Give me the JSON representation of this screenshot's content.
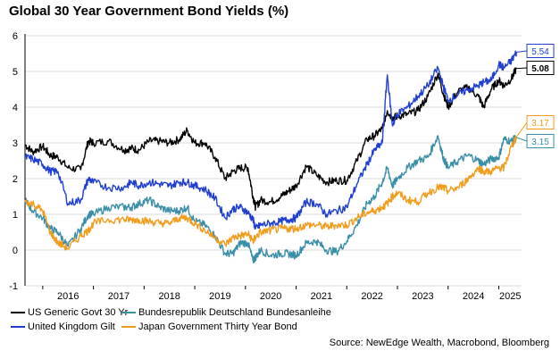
{
  "title": "Global 30 Year Government Bond Yields (%)",
  "source": "Source: NewEdge Wealth, Macrobond, Bloomberg",
  "chart_data": {
    "type": "line",
    "ylim": [
      -1,
      6
    ],
    "y_ticks": [
      -1,
      0,
      1,
      2,
      3,
      4,
      5,
      6
    ],
    "y_tick_labels": [
      "-1",
      "0",
      "1",
      "2",
      "3",
      "4",
      "5",
      "6"
    ],
    "xlim": [
      2015.65,
      2025.45
    ],
    "x_ticks": [
      2016,
      2017,
      2018,
      2019,
      2020,
      2021,
      2022,
      2023,
      2024,
      2025
    ],
    "x_tick_labels": [
      "2016",
      "2017",
      "2018",
      "2019",
      "2020",
      "2021",
      "2022",
      "2023",
      "2024",
      "2025"
    ],
    "grid": true,
    "legend_position": "bottom-left",
    "series": [
      {
        "name": "US Generic Govt 30 Yr",
        "color": "#000000",
        "end_label": "5.08",
        "x": [
          2015.65,
          2015.8,
          2016.0,
          2016.15,
          2016.3,
          2016.5,
          2016.75,
          2016.9,
          2017.0,
          2017.3,
          2017.6,
          2017.75,
          2017.9,
          2018.1,
          2018.3,
          2018.5,
          2018.7,
          2018.85,
          2019.0,
          2019.2,
          2019.4,
          2019.6,
          2019.75,
          2019.9,
          2020.05,
          2020.15,
          2020.2,
          2020.3,
          2020.5,
          2020.7,
          2020.85,
          2021.0,
          2021.2,
          2021.4,
          2021.6,
          2021.8,
          2022.0,
          2022.2,
          2022.4,
          2022.55,
          2022.7,
          2022.8,
          2022.9,
          2023.0,
          2023.2,
          2023.4,
          2023.6,
          2023.8,
          2023.9,
          2024.0,
          2024.2,
          2024.4,
          2024.6,
          2024.7,
          2024.85,
          2025.0,
          2025.1,
          2025.25,
          2025.35
        ],
        "y": [
          2.95,
          2.75,
          2.9,
          2.65,
          2.6,
          2.3,
          2.25,
          3.05,
          3.0,
          3.05,
          2.8,
          2.85,
          2.8,
          3.05,
          3.05,
          3.0,
          3.1,
          3.35,
          3.0,
          3.0,
          2.6,
          2.0,
          2.2,
          2.3,
          2.3,
          1.5,
          1.2,
          1.4,
          1.35,
          1.5,
          1.65,
          1.8,
          2.35,
          2.1,
          1.9,
          1.95,
          1.95,
          2.5,
          3.1,
          3.2,
          3.4,
          3.9,
          3.7,
          3.75,
          3.8,
          3.9,
          4.3,
          4.95,
          4.4,
          4.0,
          4.45,
          4.55,
          4.3,
          4.0,
          4.5,
          4.75,
          4.6,
          4.8,
          5.08
        ]
      },
      {
        "name": "Bundesrepublik Deutschland Bundesanleihe",
        "color": "#3a8fa8",
        "end_label": "3.15",
        "x": [
          2015.65,
          2015.8,
          2016.0,
          2016.15,
          2016.3,
          2016.5,
          2016.75,
          2016.9,
          2017.0,
          2017.3,
          2017.6,
          2017.75,
          2017.9,
          2018.1,
          2018.3,
          2018.5,
          2018.7,
          2018.85,
          2019.0,
          2019.2,
          2019.4,
          2019.6,
          2019.75,
          2019.9,
          2020.05,
          2020.15,
          2020.2,
          2020.3,
          2020.5,
          2020.7,
          2020.85,
          2021.0,
          2021.2,
          2021.4,
          2021.6,
          2021.8,
          2022.0,
          2022.2,
          2022.4,
          2022.55,
          2022.7,
          2022.8,
          2022.9,
          2023.0,
          2023.2,
          2023.4,
          2023.6,
          2023.8,
          2023.9,
          2024.0,
          2024.2,
          2024.4,
          2024.6,
          2024.7,
          2024.85,
          2025.0,
          2025.1,
          2025.25,
          2025.35
        ],
        "y": [
          1.4,
          1.1,
          0.9,
          0.6,
          0.5,
          0.1,
          0.6,
          1.0,
          1.0,
          1.2,
          1.2,
          1.2,
          1.3,
          1.4,
          1.2,
          1.1,
          1.1,
          1.2,
          0.8,
          0.7,
          0.4,
          -0.1,
          -0.1,
          0.2,
          0.2,
          -0.3,
          -0.2,
          0.0,
          -0.15,
          -0.1,
          -0.1,
          -0.15,
          0.2,
          0.25,
          0.0,
          -0.05,
          0.25,
          0.7,
          1.3,
          1.5,
          1.9,
          2.3,
          1.8,
          2.0,
          2.3,
          2.5,
          2.6,
          3.2,
          2.6,
          2.3,
          2.5,
          2.65,
          2.5,
          2.4,
          2.55,
          2.6,
          3.1,
          3.05,
          3.15
        ]
      },
      {
        "name": "United Kingdom Gilt",
        "color": "#1f3fd1",
        "end_label": "5.54",
        "x": [
          2015.65,
          2015.8,
          2016.0,
          2016.15,
          2016.3,
          2016.5,
          2016.75,
          2016.9,
          2017.0,
          2017.3,
          2017.6,
          2017.75,
          2017.9,
          2018.1,
          2018.3,
          2018.5,
          2018.7,
          2018.85,
          2019.0,
          2019.2,
          2019.4,
          2019.6,
          2019.75,
          2019.9,
          2020.05,
          2020.15,
          2020.2,
          2020.3,
          2020.5,
          2020.7,
          2020.85,
          2021.0,
          2021.2,
          2021.4,
          2021.6,
          2021.8,
          2022.0,
          2022.2,
          2022.4,
          2022.55,
          2022.7,
          2022.8,
          2022.9,
          2023.0,
          2023.2,
          2023.4,
          2023.6,
          2023.8,
          2023.9,
          2024.0,
          2024.2,
          2024.4,
          2024.6,
          2024.7,
          2024.85,
          2025.0,
          2025.1,
          2025.25,
          2025.35
        ],
        "y": [
          2.6,
          2.55,
          2.4,
          2.2,
          2.2,
          1.3,
          1.4,
          2.0,
          1.9,
          1.75,
          1.75,
          1.9,
          1.8,
          1.9,
          1.85,
          1.8,
          1.9,
          1.9,
          1.8,
          1.7,
          1.45,
          0.9,
          1.15,
          1.2,
          1.05,
          0.85,
          0.6,
          0.7,
          0.75,
          0.8,
          0.85,
          0.9,
          1.35,
          1.3,
          1.0,
          1.1,
          1.2,
          1.85,
          2.4,
          2.8,
          3.0,
          4.9,
          3.5,
          3.8,
          4.0,
          4.3,
          4.6,
          5.1,
          4.6,
          4.2,
          4.35,
          4.5,
          4.6,
          4.7,
          4.75,
          5.2,
          5.1,
          5.3,
          5.54
        ]
      },
      {
        "name": "Japan Government Thirty Year Bond",
        "color": "#f19c1c",
        "end_label": "3.17",
        "x": [
          2015.65,
          2015.8,
          2016.0,
          2016.15,
          2016.3,
          2016.5,
          2016.75,
          2016.9,
          2017.0,
          2017.3,
          2017.6,
          2017.75,
          2017.9,
          2018.1,
          2018.3,
          2018.5,
          2018.7,
          2018.85,
          2019.0,
          2019.2,
          2019.4,
          2019.6,
          2019.75,
          2019.9,
          2020.05,
          2020.15,
          2020.2,
          2020.3,
          2020.5,
          2020.7,
          2020.85,
          2021.0,
          2021.2,
          2021.4,
          2021.6,
          2021.8,
          2022.0,
          2022.2,
          2022.4,
          2022.55,
          2022.7,
          2022.8,
          2022.9,
          2023.0,
          2023.2,
          2023.4,
          2023.6,
          2023.8,
          2023.9,
          2024.0,
          2024.2,
          2024.4,
          2024.6,
          2024.7,
          2024.85,
          2025.0,
          2025.1,
          2025.25,
          2025.35
        ],
        "y": [
          1.35,
          1.3,
          1.1,
          0.5,
          0.2,
          0.05,
          0.4,
          0.55,
          0.75,
          0.85,
          0.85,
          0.85,
          0.85,
          0.8,
          0.75,
          0.75,
          0.9,
          0.9,
          0.75,
          0.55,
          0.35,
          0.15,
          0.35,
          0.4,
          0.45,
          0.25,
          0.35,
          0.5,
          0.55,
          0.6,
          0.6,
          0.6,
          0.7,
          0.7,
          0.65,
          0.7,
          0.7,
          0.9,
          1.05,
          1.1,
          1.2,
          1.3,
          1.5,
          1.6,
          1.4,
          1.35,
          1.6,
          1.75,
          1.75,
          1.65,
          1.75,
          2.0,
          2.3,
          2.2,
          2.2,
          2.3,
          2.3,
          2.9,
          3.17
        ]
      }
    ]
  }
}
